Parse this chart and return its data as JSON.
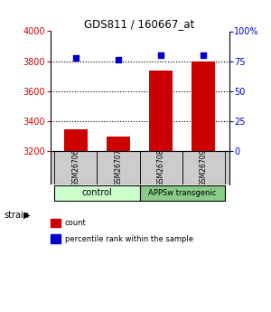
{
  "title": "GDS811 / 160667_at",
  "samples": [
    "GSM26706",
    "GSM26707",
    "GSM26708",
    "GSM26709"
  ],
  "counts": [
    3345,
    3295,
    3740,
    3800
  ],
  "percentiles": [
    78,
    76,
    80,
    80
  ],
  "ylim_left": [
    3200,
    4000
  ],
  "ylim_right": [
    0,
    100
  ],
  "yticks_left": [
    3200,
    3400,
    3600,
    3800,
    4000
  ],
  "yticks_right": [
    0,
    25,
    50,
    75,
    100
  ],
  "ytick_labels_right": [
    "0",
    "25",
    "50",
    "75",
    "100%"
  ],
  "bar_color": "#cc0000",
  "dot_color": "#0000cc",
  "bar_width": 0.55,
  "groups": [
    {
      "label": "control",
      "color": "#ccffcc"
    },
    {
      "label": "APPSw transgenic",
      "color": "#88cc88"
    }
  ],
  "legend_items": [
    {
      "label": "count",
      "color": "#cc0000"
    },
    {
      "label": "percentile rank within the sample",
      "color": "#0000cc"
    }
  ],
  "left_tick_color": "#cc0000",
  "right_tick_color": "#0000cc",
  "background_color": "#ffffff",
  "sample_box_color": "#cccccc",
  "grid_linestyle": ":",
  "grid_linewidth": 0.8,
  "grid_color": "#000000"
}
